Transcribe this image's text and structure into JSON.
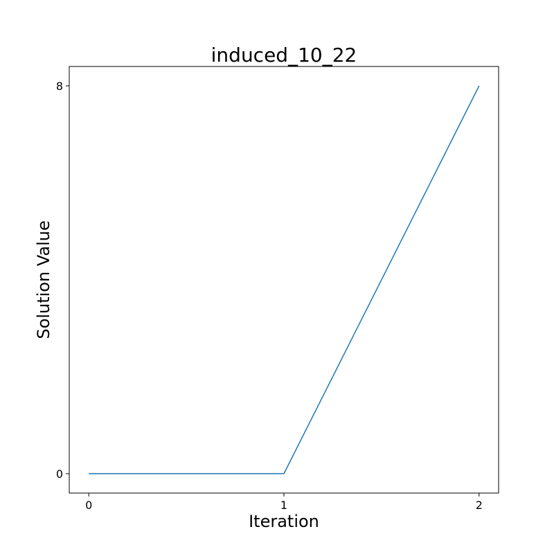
{
  "chart_data": {
    "type": "line",
    "title": "induced_10_22",
    "xlabel": "Iteration",
    "ylabel": "Solution Value",
    "x": [
      0,
      1,
      2
    ],
    "series": [
      {
        "values": [
          0,
          0,
          8
        ],
        "color": "#1f77b4"
      }
    ],
    "xticks": [
      "0",
      "1",
      "2"
    ],
    "yticks": [
      "0",
      "8"
    ],
    "xlim": [
      -0.1,
      2.1
    ],
    "ylim": [
      -0.4,
      8.4
    ],
    "grid": false,
    "legend": "none"
  }
}
